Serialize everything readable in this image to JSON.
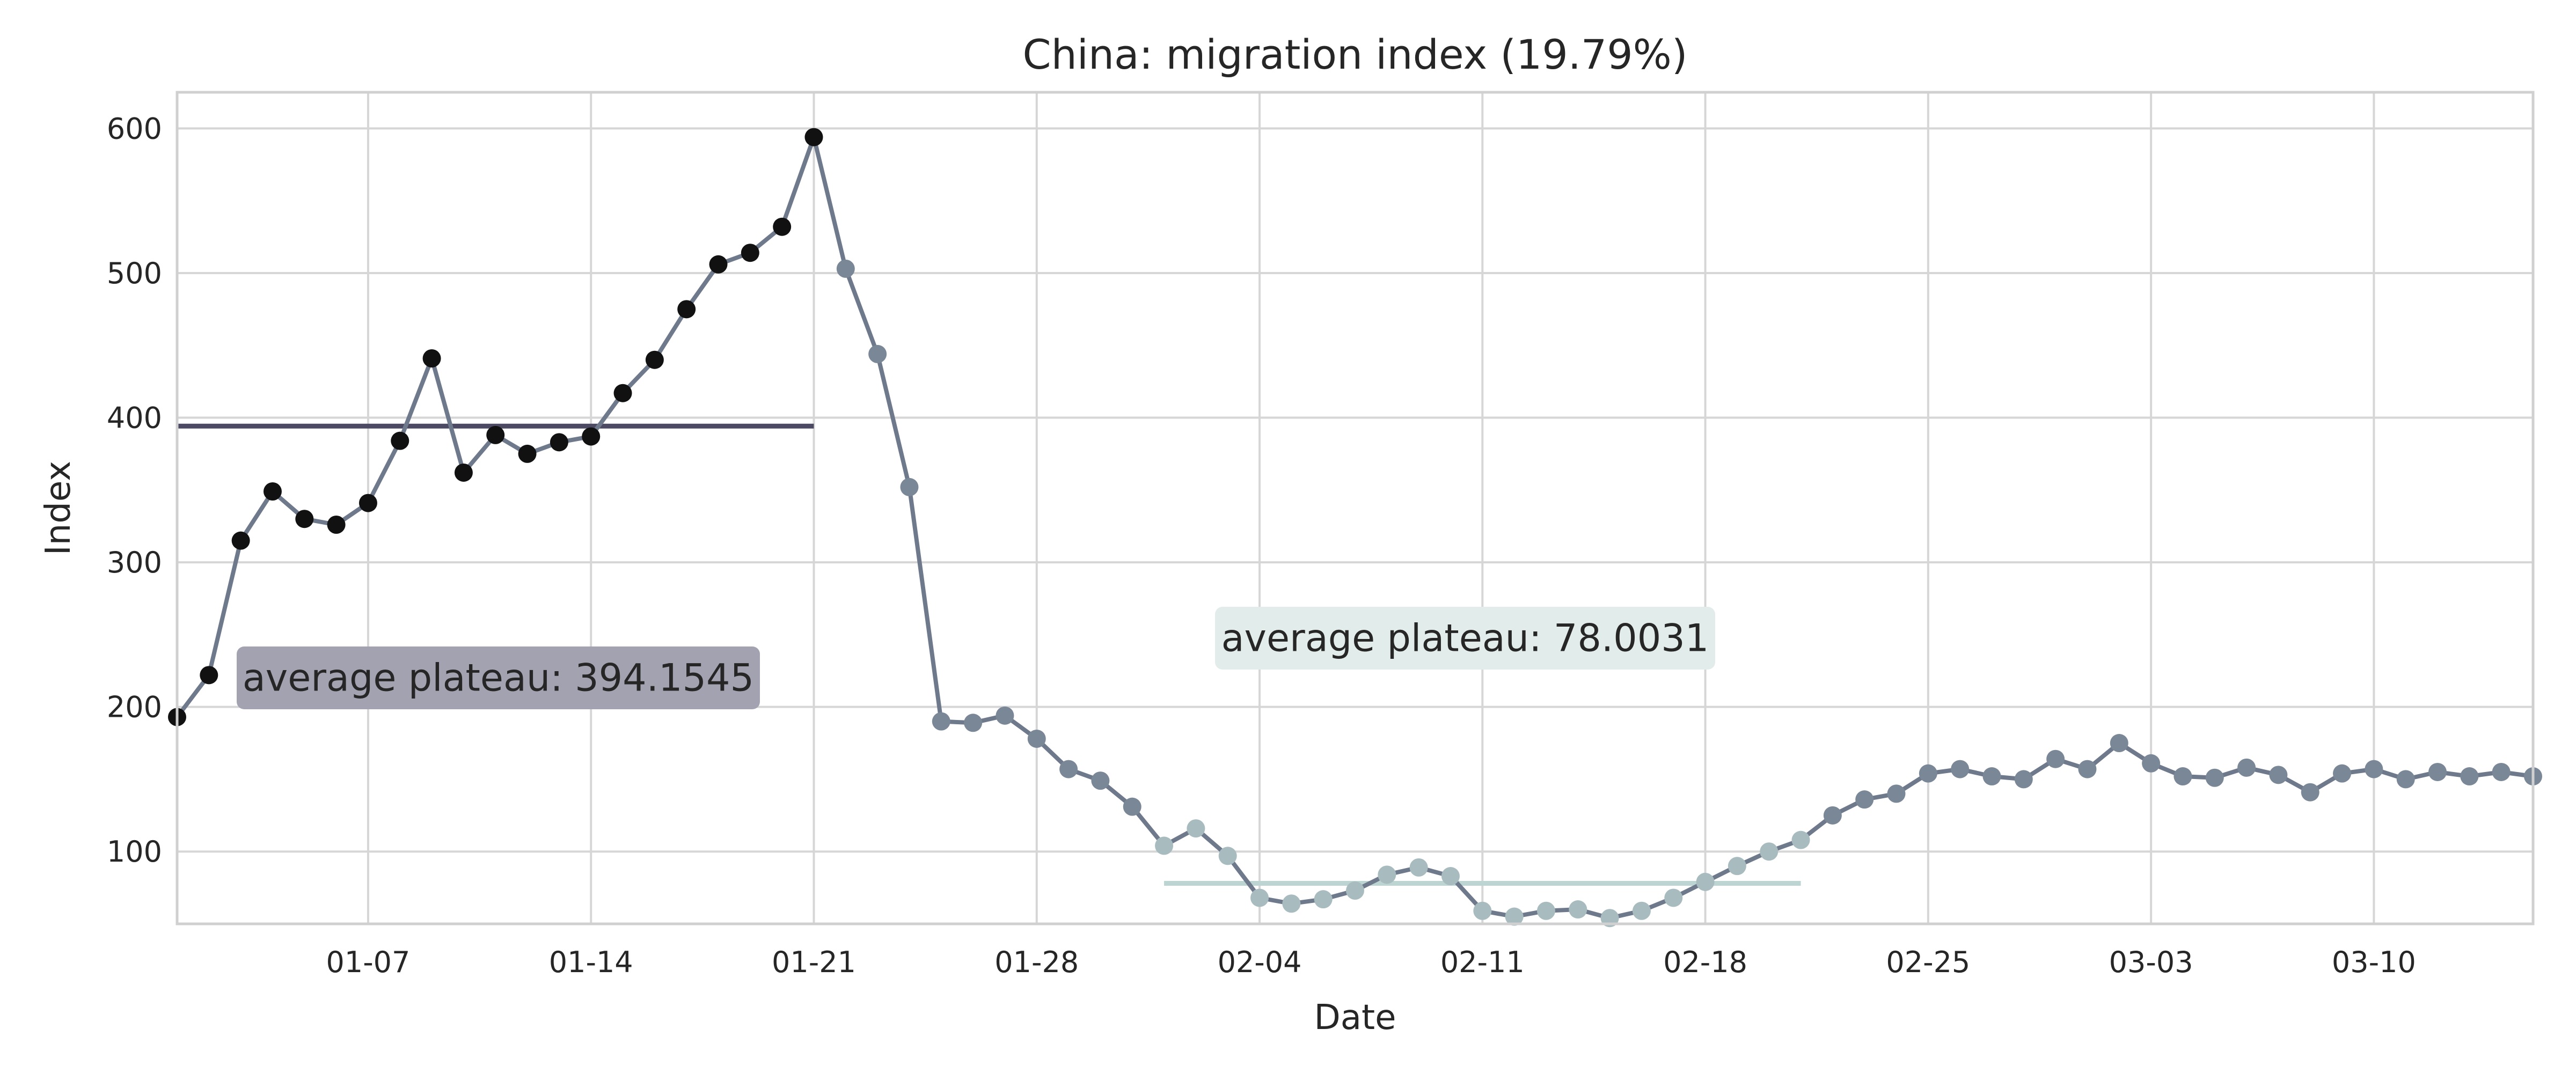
{
  "chart_data": {
    "type": "line",
    "title": "China: migration index (19.79%)",
    "xlabel": "Date",
    "ylabel": "Index",
    "ylim": [
      50,
      625
    ],
    "xlim": [
      "2020-01-01",
      "2020-03-15"
    ],
    "x_ticks": [
      "01-07",
      "01-14",
      "01-21",
      "01-28",
      "02-04",
      "02-11",
      "02-18",
      "02-25",
      "03-03",
      "03-10"
    ],
    "y_ticks": [
      100,
      200,
      300,
      400,
      500,
      600
    ],
    "grid": true,
    "series": [
      {
        "x": [
          "2020-01-01",
          "2020-01-02",
          "2020-01-03",
          "2020-01-04",
          "2020-01-05",
          "2020-01-06",
          "2020-01-07",
          "2020-01-08",
          "2020-01-09",
          "2020-01-10",
          "2020-01-11",
          "2020-01-12",
          "2020-01-13",
          "2020-01-14",
          "2020-01-15",
          "2020-01-16",
          "2020-01-17",
          "2020-01-18",
          "2020-01-19",
          "2020-01-20",
          "2020-01-21",
          "2020-01-22",
          "2020-01-23",
          "2020-01-24",
          "2020-01-25",
          "2020-01-26",
          "2020-01-27",
          "2020-01-28",
          "2020-01-29",
          "2020-01-30",
          "2020-01-31",
          "2020-02-01",
          "2020-02-02",
          "2020-02-03",
          "2020-02-04",
          "2020-02-05",
          "2020-02-06",
          "2020-02-07",
          "2020-02-08",
          "2020-02-09",
          "2020-02-10",
          "2020-02-11",
          "2020-02-12",
          "2020-02-13",
          "2020-02-14",
          "2020-02-15",
          "2020-02-16",
          "2020-02-17",
          "2020-02-18",
          "2020-02-19",
          "2020-02-20",
          "2020-02-21",
          "2020-02-22",
          "2020-02-23",
          "2020-02-24",
          "2020-02-25",
          "2020-02-26",
          "2020-02-27",
          "2020-02-28",
          "2020-02-29",
          "2020-03-01",
          "2020-03-02",
          "2020-03-03",
          "2020-03-04",
          "2020-03-05",
          "2020-03-06",
          "2020-03-07",
          "2020-03-08",
          "2020-03-09",
          "2020-03-10",
          "2020-03-11",
          "2020-03-12",
          "2020-03-13",
          "2020-03-14",
          "2020-03-15"
        ],
        "y": [
          193,
          222,
          315,
          349,
          330,
          326,
          341,
          384,
          441,
          362,
          388,
          375,
          383,
          387,
          417,
          440,
          475,
          506,
          514,
          532,
          594,
          503,
          444,
          352,
          190,
          189,
          194,
          178,
          157,
          149,
          131,
          104,
          116,
          97,
          68,
          64,
          67,
          73,
          84,
          89,
          83,
          59,
          55,
          59,
          60,
          54,
          59,
          68,
          79,
          90,
          100,
          108,
          125,
          136,
          140,
          154,
          157,
          152,
          150,
          164,
          157,
          175,
          161,
          152,
          151,
          158,
          153,
          141,
          154,
          157,
          150,
          155,
          152,
          155,
          152
        ],
        "color": "#6e7a8c"
      }
    ],
    "plateaus": [
      {
        "value": 394.1545,
        "x_start": "2020-01-01",
        "x_end": "2020-01-21",
        "color": "#4b4a62",
        "label": "average plateau: 394.1545",
        "label_bg": "#a3a2b0"
      },
      {
        "value": 78.0031,
        "x_start": "2020-02-01",
        "x_end": "2020-02-21",
        "color": "#bcd4d2",
        "label": "average plateau: 78.0031",
        "label_bg": "#e2ecea"
      }
    ],
    "marker_colors": {
      "dark": "#111111",
      "slate": "#7a8797",
      "light": "#a8bcc0"
    }
  }
}
